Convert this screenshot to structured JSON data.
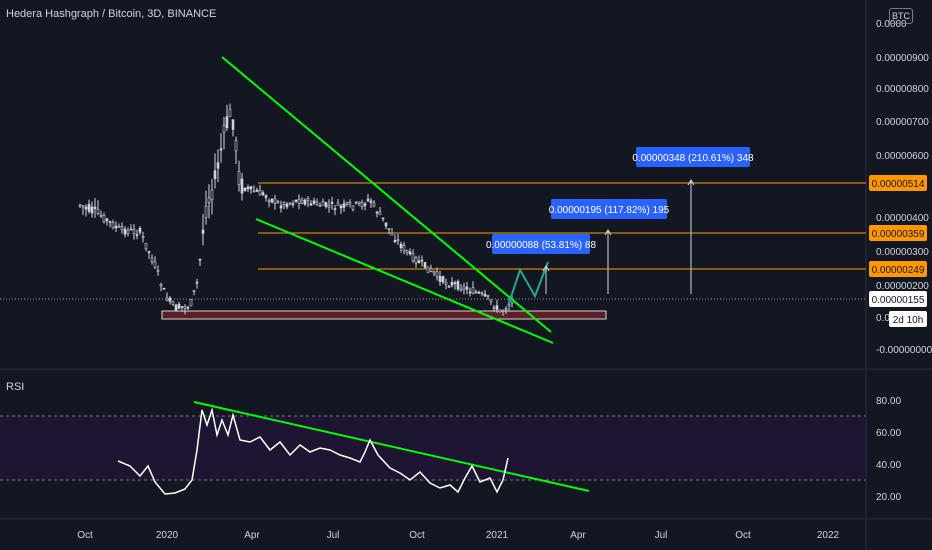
{
  "header": {
    "title": "Hedera Hashgraph / Bitcoin, 3D, BINANCE",
    "currency": "BTC"
  },
  "rsi_panel": {
    "title": "RSI"
  },
  "colors": {
    "background": "#131722",
    "candle": "#d1d4dc",
    "trendline": "#00ff00",
    "level_line": "#ff9800",
    "badge": "#2962ff",
    "zone": "#5d1f24",
    "projection": "#26a69a",
    "rsi_bg": "#1e1533"
  },
  "chart_data": [
    {
      "type": "candlestick",
      "title": "Hedera Hashgraph / Bitcoin, 3D, BINANCE",
      "y_tick_labels": [
        "0.00000900",
        "0.00000800",
        "0.00000700",
        "0.00000600",
        "0.00000400",
        "0.00000300",
        "0.00000200",
        "-0.00000000"
      ],
      "x_tick_labels": [
        "Oct",
        "2020",
        "Apr",
        "Jul",
        "Oct",
        "2021",
        "Apr",
        "Jul",
        "Oct",
        "2022"
      ],
      "price_labels": [
        "0.00000514",
        "0.00000359",
        "0.00000249",
        "0.00000155"
      ],
      "current_price": "0.00000155",
      "countdown": "2d 10h",
      "partial_labels": [
        "0.0000",
        "0.000"
      ],
      "targets": [
        {
          "label": "0.00000088 (53.81%) 88"
        },
        {
          "label": "0.00000195 (117.82%) 195"
        },
        {
          "label": "0.00000348 (210.61%) 348"
        }
      ]
    },
    {
      "type": "line",
      "title": "RSI",
      "y_tick_labels": [
        "80.00",
        "60.00",
        "40.00",
        "20.00"
      ],
      "bands": [
        70,
        30
      ]
    }
  ]
}
